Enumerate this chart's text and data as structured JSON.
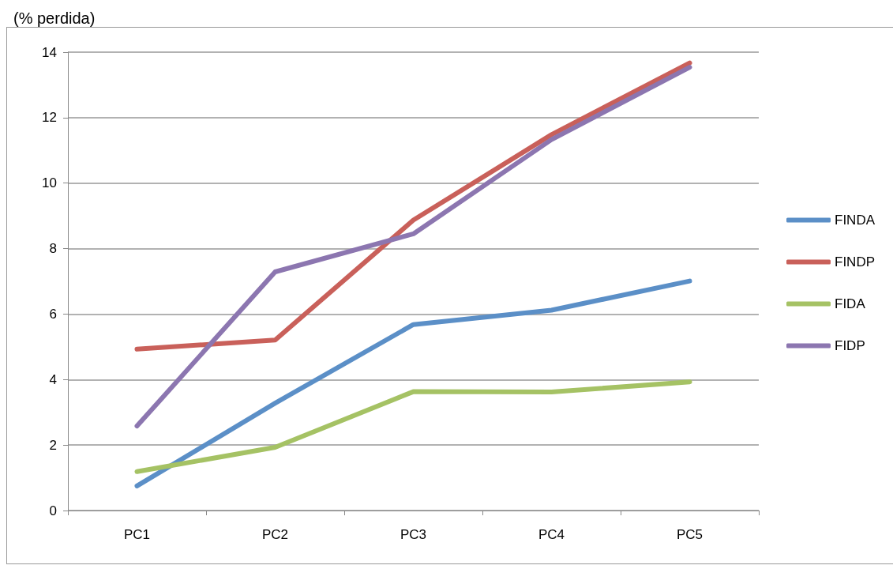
{
  "chart_data": {
    "type": "line",
    "ylabel": "(% perdida)",
    "categories": [
      "PC1",
      "PC2",
      "PC3",
      "PC4",
      "PC5"
    ],
    "series": [
      {
        "name": "FINDA",
        "color": "#5b8fc7",
        "values": [
          0.75,
          3.28,
          5.68,
          6.12,
          7.01
        ]
      },
      {
        "name": "FINDP",
        "color": "#c9605a",
        "values": [
          4.93,
          5.21,
          8.87,
          11.48,
          13.67
        ]
      },
      {
        "name": "FIDA",
        "color": "#a5c264",
        "values": [
          1.19,
          1.93,
          3.63,
          3.62,
          3.93
        ]
      },
      {
        "name": "FIDP",
        "color": "#8c76b0",
        "values": [
          2.58,
          7.29,
          8.45,
          11.33,
          13.54
        ]
      }
    ],
    "ylim": [
      0,
      14
    ],
    "yticks": [
      0,
      2,
      4,
      6,
      8,
      10,
      12,
      14
    ],
    "grid": "y",
    "legend": "right",
    "marker": "none",
    "line_style": "solid"
  }
}
